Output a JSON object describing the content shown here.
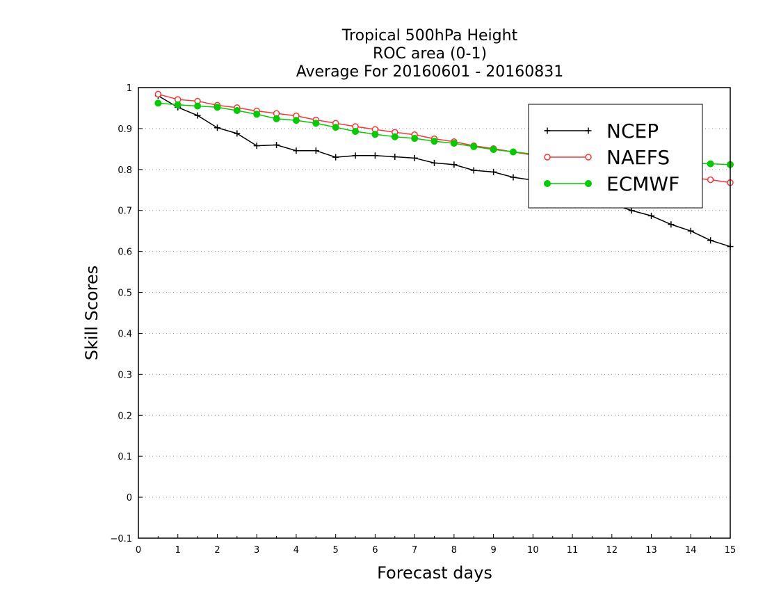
{
  "chart_data": {
    "type": "line",
    "title_lines": [
      "Tropical 500hPa Height",
      "ROC area (0-1)",
      "Average For 20160601 - 20160831"
    ],
    "xlabel": "Forecast days",
    "ylabel": "Skill Scores",
    "xlim": [
      0,
      15
    ],
    "ylim": [
      -0.1,
      1
    ],
    "x_ticks": [
      "0",
      "1",
      "2",
      "3",
      "4",
      "5",
      "6",
      "7",
      "8",
      "9",
      "10",
      "11",
      "12",
      "13",
      "14",
      "15"
    ],
    "y_ticks": [
      "−0.1",
      "0",
      "0.1",
      "0.2",
      "0.3",
      "0.4",
      "0.5",
      "0.6",
      "0.7",
      "0.8",
      "0.9",
      "1"
    ],
    "grid": "horizontal-dotted",
    "legend_position": "top-right",
    "x": [
      0.5,
      1,
      1.5,
      2,
      2.5,
      3,
      3.5,
      4,
      4.5,
      5,
      5.5,
      6,
      6.5,
      7,
      7.5,
      8,
      8.5,
      9,
      9.5,
      10,
      10.5,
      11,
      11.5,
      12,
      12.5,
      13,
      13.5,
      14,
      14.5,
      15
    ],
    "series": [
      {
        "name": "NCEP",
        "color": "#000000",
        "marker": "plus",
        "values": [
          0.98,
          0.952,
          0.932,
          0.902,
          0.888,
          0.858,
          0.86,
          0.846,
          0.846,
          0.83,
          0.834,
          0.834,
          0.831,
          0.828,
          0.816,
          0.812,
          0.798,
          0.794,
          0.781,
          0.774,
          0.768,
          0.76,
          0.73,
          0.716,
          0.7,
          0.687,
          0.666,
          0.65,
          0.627,
          0.612
        ]
      },
      {
        "name": "NAEFS",
        "color": "#ff3333",
        "marker": "open-circle",
        "values": [
          0.984,
          0.971,
          0.967,
          0.957,
          0.951,
          0.943,
          0.937,
          0.931,
          0.921,
          0.913,
          0.905,
          0.898,
          0.891,
          0.885,
          0.875,
          0.868,
          0.858,
          0.851,
          0.843,
          0.835,
          0.825,
          0.815,
          0.808,
          0.8,
          0.795,
          0.79,
          0.785,
          0.78,
          0.775,
          0.768
        ]
      },
      {
        "name": "ECMWF",
        "color": "#00cc00",
        "marker": "filled-circle",
        "values": [
          0.962,
          0.958,
          0.955,
          0.952,
          0.944,
          0.935,
          0.924,
          0.92,
          0.913,
          0.903,
          0.893,
          0.886,
          0.88,
          0.876,
          0.869,
          0.864,
          0.856,
          0.849,
          0.843,
          0.838,
          0.834,
          0.83,
          0.826,
          0.823,
          0.82,
          0.818,
          0.817,
          0.816,
          0.814,
          0.812
        ]
      }
    ]
  }
}
